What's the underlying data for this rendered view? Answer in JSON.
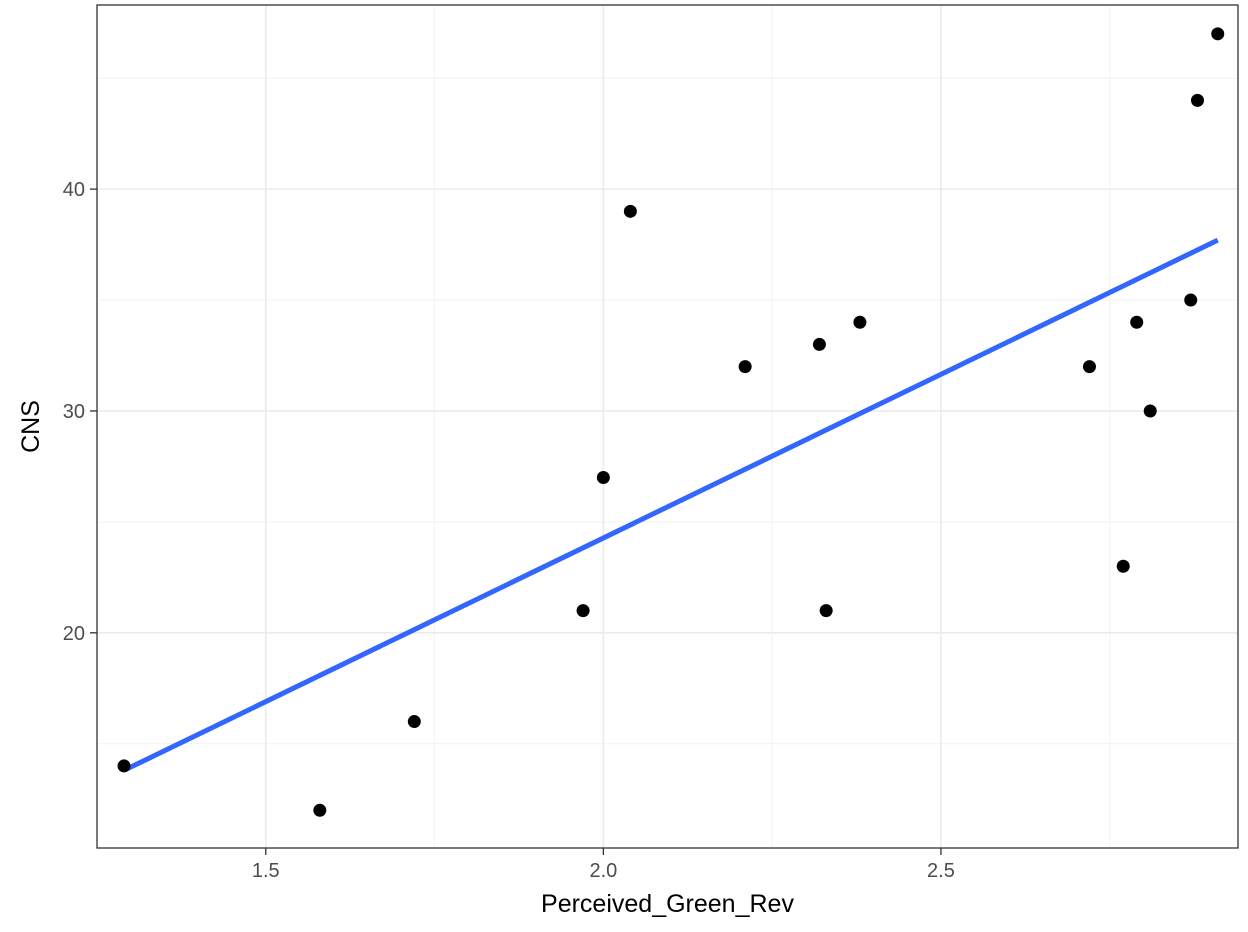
{
  "chart_data": {
    "type": "scatter",
    "title": "",
    "xlabel": "Perceived_Green_Rev",
    "ylabel": "CNS",
    "xlim": [
      1.25,
      2.94
    ],
    "ylim": [
      10.3,
      48.3
    ],
    "x_ticks": [
      1.5,
      2.0,
      2.5
    ],
    "x_tick_labels": [
      "1.5",
      "2.0",
      "2.5"
    ],
    "y_ticks": [
      20,
      30,
      40
    ],
    "y_tick_labels": [
      "20",
      "30",
      "40"
    ],
    "grid": true,
    "points": [
      {
        "x": 1.29,
        "y": 14
      },
      {
        "x": 1.58,
        "y": 12
      },
      {
        "x": 1.72,
        "y": 16
      },
      {
        "x": 1.97,
        "y": 21
      },
      {
        "x": 2.0,
        "y": 27
      },
      {
        "x": 2.04,
        "y": 39
      },
      {
        "x": 2.21,
        "y": 32
      },
      {
        "x": 2.32,
        "y": 33
      },
      {
        "x": 2.33,
        "y": 21
      },
      {
        "x": 2.38,
        "y": 34
      },
      {
        "x": 2.72,
        "y": 32
      },
      {
        "x": 2.77,
        "y": 23
      },
      {
        "x": 2.79,
        "y": 34
      },
      {
        "x": 2.81,
        "y": 30
      },
      {
        "x": 2.87,
        "y": 35
      },
      {
        "x": 2.88,
        "y": 44
      },
      {
        "x": 2.91,
        "y": 47
      }
    ],
    "trend_line": {
      "x": [
        1.29,
        2.91
      ],
      "y": [
        13.8,
        37.7
      ]
    },
    "colors": {
      "points": "#000000",
      "trend_line": "#3366ff",
      "grid_major": "#ebebeb",
      "grid_minor": "#f2f2f2",
      "panel_border": "#333333",
      "tick_text": "#4d4d4d"
    }
  }
}
